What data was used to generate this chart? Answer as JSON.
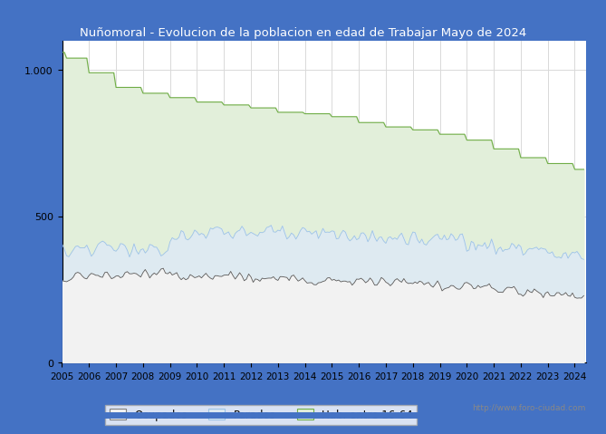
{
  "title": "Nuñomoral - Evolucion de la poblacion en edad de Trabajar Mayo de 2024",
  "title_color": "white",
  "title_bg_color": "#4472c4",
  "ylim": [
    0,
    1100
  ],
  "yticks": [
    0,
    500,
    1000
  ],
  "ytick_labels": [
    "0",
    "500",
    "1.000"
  ],
  "year_start": 2005,
  "year_end": 2024,
  "hab_annual": [
    1040,
    990,
    940,
    920,
    905,
    890,
    880,
    870,
    855,
    850,
    840,
    820,
    805,
    795,
    780,
    760,
    730,
    700,
    680,
    660
  ],
  "hab_spike_2005": 1060,
  "parados_base": [
    380,
    390,
    385,
    385,
    430,
    445,
    440,
    445,
    445,
    440,
    435,
    430,
    425,
    420,
    415,
    405,
    395,
    385,
    375,
    370
  ],
  "parados_noise": 30,
  "ocupados_base": [
    295,
    295,
    300,
    305,
    295,
    295,
    295,
    290,
    290,
    285,
    280,
    278,
    273,
    268,
    262,
    255,
    248,
    240,
    233,
    228
  ],
  "ocupados_noise": 20,
  "color_hab": "#e2efda",
  "color_parados": "#deeaf1",
  "color_ocupados": "#f2f2f2",
  "line_hab": "#70ad47",
  "line_parados": "#9dc3e6",
  "line_ocupados": "#595959",
  "legend_labels": [
    "Ocupados",
    "Parados",
    "Hab. entre 16-64"
  ],
  "watermark": "http://www.foro-ciudad.com",
  "plot_bg": "white",
  "grid_color": "#d9d9d9"
}
